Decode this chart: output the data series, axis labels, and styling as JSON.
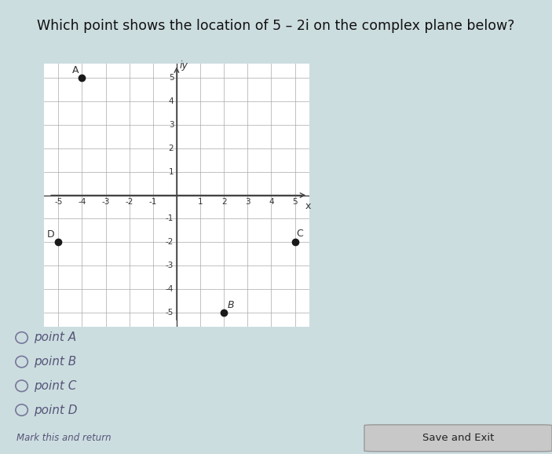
{
  "title": "Which point shows the location of 5 – 2i on the complex plane below?",
  "points": {
    "A": [
      -4,
      5
    ],
    "B": [
      2,
      -5
    ],
    "C": [
      5,
      -2
    ],
    "D": [
      -5,
      -2
    ]
  },
  "point_color": "#1a1a1a",
  "point_size": 6,
  "axis_range": [
    -5,
    5
  ],
  "grid_color": "#aaaaaa",
  "xlabel": "x",
  "ylabel": "iy",
  "options": [
    "point A",
    "point B",
    "point C",
    "point D"
  ],
  "title_bg": "#f0f0f0",
  "main_bg": "#ccdde0",
  "chart_bg": "#ffffff",
  "title_color": "#111111",
  "option_color": "#555577",
  "save_exit_bg": "#c8c8c8",
  "save_exit_text": "Save and Exit",
  "mark_return_text": "Mark this and return"
}
